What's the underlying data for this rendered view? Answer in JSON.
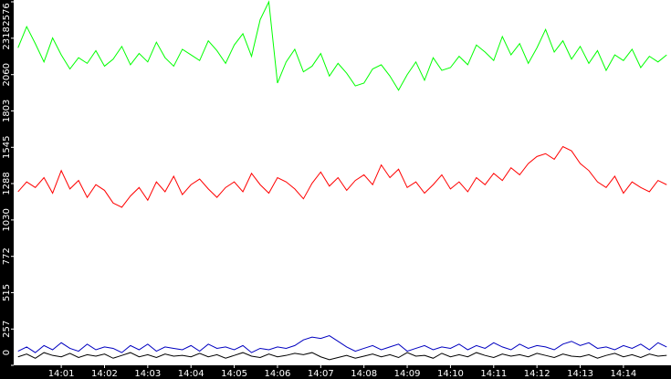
{
  "chart_data": {
    "type": "line",
    "x": [
      0,
      0.2,
      0.4,
      0.6,
      0.8,
      1.0,
      1.2,
      1.4,
      1.6,
      1.8,
      2.0,
      2.2,
      2.4,
      2.6,
      2.8,
      3.0,
      3.2,
      3.4,
      3.6,
      3.8,
      4.0,
      4.2,
      4.4,
      4.6,
      4.8,
      5.0,
      5.2,
      5.4,
      5.6,
      5.8,
      6.0,
      6.2,
      6.4,
      6.6,
      6.8,
      7.0,
      7.2,
      7.4,
      7.6,
      7.8,
      8.0,
      8.2,
      8.4,
      8.6,
      8.8,
      9.0,
      9.2,
      9.4,
      9.6,
      9.8,
      10.0,
      10.2,
      10.4,
      10.6,
      10.8,
      11.0,
      11.2,
      11.4,
      11.6,
      11.8,
      12.0,
      12.2,
      12.4,
      12.6,
      12.8,
      13.0,
      13.2,
      13.4,
      13.6,
      13.8,
      14.0,
      14.2,
      14.4,
      14.6,
      14.8,
      15.0
    ],
    "series": [
      {
        "color": "#00ff00",
        "values": [
          2250,
          2400,
          2280,
          2150,
          2320,
          2200,
          2100,
          2180,
          2140,
          2230,
          2120,
          2170,
          2260,
          2130,
          2210,
          2150,
          2290,
          2180,
          2120,
          2240,
          2200,
          2160,
          2300,
          2230,
          2140,
          2270,
          2350,
          2190,
          2450,
          2576,
          2000,
          2150,
          2240,
          2080,
          2120,
          2210,
          2050,
          2140,
          2070,
          1980,
          2000,
          2100,
          2130,
          2050,
          1950,
          2060,
          2150,
          2020,
          2180,
          2090,
          2110,
          2190,
          2130,
          2270,
          2220,
          2160,
          2330,
          2200,
          2280,
          2140,
          2250,
          2380,
          2220,
          2300,
          2170,
          2260,
          2140,
          2230,
          2090,
          2200,
          2160,
          2240,
          2110,
          2190,
          2150,
          2200
        ]
      },
      {
        "color": "#ff0000",
        "values": [
          1230,
          1300,
          1260,
          1330,
          1220,
          1380,
          1250,
          1310,
          1190,
          1280,
          1240,
          1150,
          1120,
          1200,
          1260,
          1170,
          1300,
          1230,
          1340,
          1210,
          1280,
          1320,
          1250,
          1190,
          1260,
          1300,
          1230,
          1360,
          1280,
          1220,
          1330,
          1300,
          1250,
          1180,
          1290,
          1370,
          1270,
          1330,
          1240,
          1310,
          1350,
          1280,
          1420,
          1330,
          1390,
          1260,
          1300,
          1220,
          1280,
          1350,
          1250,
          1300,
          1230,
          1330,
          1280,
          1360,
          1310,
          1400,
          1350,
          1430,
          1480,
          1500,
          1460,
          1550,
          1520,
          1430,
          1380,
          1300,
          1260,
          1340,
          1220,
          1300,
          1260,
          1230,
          1310,
          1280
        ]
      },
      {
        "color": "#0000c0",
        "values": [
          100,
          130,
          90,
          140,
          110,
          160,
          120,
          100,
          150,
          110,
          130,
          120,
          90,
          140,
          110,
          150,
          100,
          130,
          120,
          110,
          140,
          100,
          150,
          120,
          130,
          110,
          140,
          90,
          120,
          110,
          130,
          120,
          140,
          180,
          200,
          190,
          210,
          170,
          130,
          100,
          120,
          140,
          110,
          130,
          150,
          100,
          120,
          140,
          110,
          130,
          120,
          150,
          110,
          140,
          120,
          160,
          130,
          110,
          150,
          120,
          140,
          130,
          110,
          150,
          170,
          140,
          160,
          120,
          130,
          110,
          140,
          120,
          150,
          110,
          160,
          130
        ]
      },
      {
        "color": "#000000",
        "values": [
          60,
          80,
          50,
          90,
          70,
          60,
          85,
          55,
          75,
          65,
          80,
          50,
          70,
          90,
          60,
          75,
          55,
          80,
          65,
          70,
          60,
          85,
          60,
          75,
          50,
          70,
          90,
          65,
          55,
          80,
          60,
          70,
          85,
          75,
          90,
          60,
          40,
          55,
          70,
          50,
          65,
          80,
          60,
          75,
          55,
          90,
          65,
          70,
          50,
          85,
          60,
          75,
          60,
          90,
          70,
          55,
          80,
          65,
          75,
          60,
          85,
          70,
          55,
          80,
          65,
          60,
          75,
          50,
          70,
          85,
          60,
          75,
          55,
          80,
          65,
          70
        ]
      }
    ],
    "xlim": [
      -0.1,
      15.1
    ],
    "xticks": [
      {
        "value": 1,
        "label": "14:01"
      },
      {
        "value": 2,
        "label": "14:02"
      },
      {
        "value": 3,
        "label": "14:03"
      },
      {
        "value": 4,
        "label": "14:04"
      },
      {
        "value": 5,
        "label": "14:05"
      },
      {
        "value": 6,
        "label": "14:06"
      },
      {
        "value": 7,
        "label": "14:07"
      },
      {
        "value": 8,
        "label": "14:08"
      },
      {
        "value": 9,
        "label": "14:09"
      },
      {
        "value": 10,
        "label": "14:10"
      },
      {
        "value": 11,
        "label": "14:11"
      },
      {
        "value": 12,
        "label": "14:12"
      },
      {
        "value": 13,
        "label": "14:13"
      },
      {
        "value": 14,
        "label": "14:14"
      }
    ],
    "ylim": [
      0,
      2576
    ],
    "yticks": [
      0,
      257,
      515,
      772,
      1030,
      1288,
      1545,
      1803,
      2060,
      2318,
      2576
    ]
  }
}
